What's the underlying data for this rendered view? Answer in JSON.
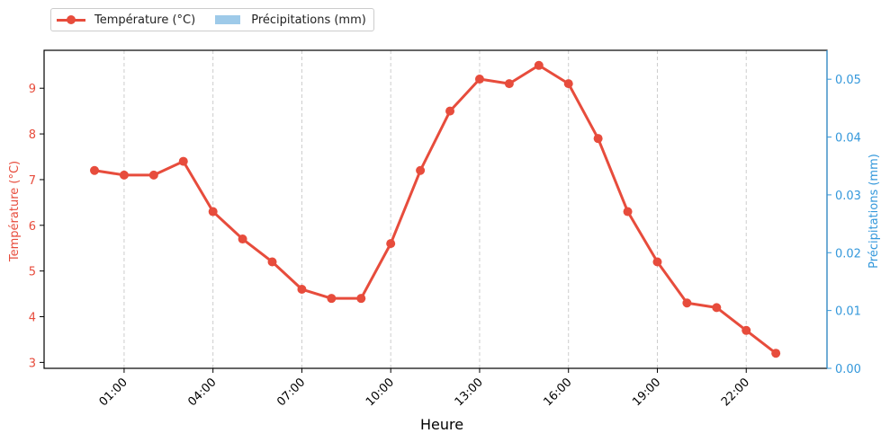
{
  "chart_data": {
    "type": "line",
    "title": "",
    "xlabel": "Heure",
    "ylabel": "Température (°C)",
    "ylabel_right": "Précipitations (mm)",
    "x": [
      "00:00",
      "01:00",
      "02:00",
      "03:00",
      "04:00",
      "05:00",
      "06:00",
      "07:00",
      "08:00",
      "09:00",
      "10:00",
      "11:00",
      "12:00",
      "13:00",
      "14:00",
      "15:00",
      "16:00",
      "17:00",
      "18:00",
      "19:00",
      "20:00",
      "21:00",
      "22:00",
      "23:00"
    ],
    "series": [
      {
        "name": "Température (°C)",
        "axis": "left",
        "type": "line",
        "color": "#e74c3c",
        "values": [
          7.2,
          7.1,
          7.1,
          7.4,
          6.3,
          5.7,
          5.2,
          4.6,
          4.4,
          4.4,
          5.6,
          7.2,
          8.5,
          9.2,
          9.1,
          9.5,
          9.1,
          7.9,
          6.3,
          5.2,
          4.3,
          4.2,
          3.7,
          3.2
        ]
      },
      {
        "name": "Précipitations (mm)",
        "axis": "right",
        "type": "bar",
        "color": "#9ecae9",
        "values": [
          0,
          0,
          0,
          0,
          0,
          0,
          0,
          0,
          0,
          0,
          0,
          0,
          0,
          0,
          0,
          0,
          0,
          0,
          0,
          0,
          0,
          0,
          0,
          0
        ]
      }
    ],
    "xticks": [
      "01:00",
      "04:00",
      "07:00",
      "10:00",
      "13:00",
      "16:00",
      "19:00",
      "22:00"
    ],
    "yticks_left": [
      3,
      4,
      5,
      6,
      7,
      8,
      9
    ],
    "yticks_right": [
      "0.00",
      "0.01",
      "0.02",
      "0.03",
      "0.04",
      "0.05"
    ],
    "ylim_left": [
      2.87,
      9.83
    ],
    "ylim_right": [
      0,
      0.055
    ],
    "grid": {
      "x": true,
      "y": false,
      "style": "dashed"
    },
    "legend_position": "top-left outside"
  },
  "legend": {
    "items": [
      {
        "label": "Température (°C)"
      },
      {
        "label": "Précipitations (mm)"
      }
    ]
  },
  "colors": {
    "temperature": "#e74c3c",
    "precip_axis": "#3498db",
    "precip_bar": "#9ecae9"
  }
}
